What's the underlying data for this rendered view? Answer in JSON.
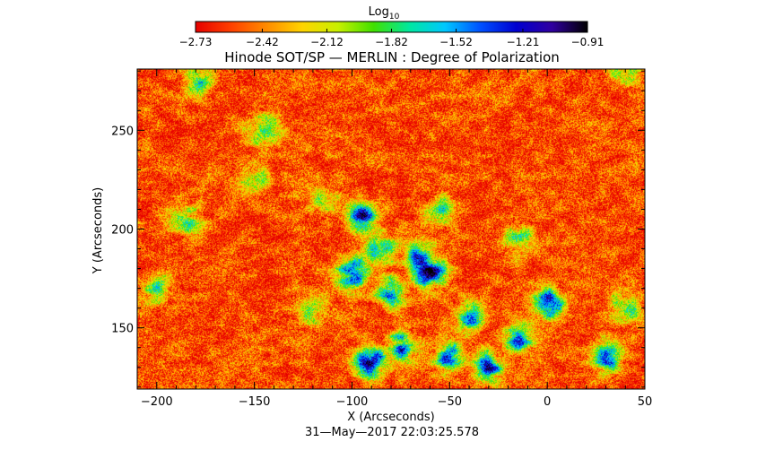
{
  "chart_data": {
    "type": "heatmap",
    "title": "Hinode SOT/SP — MERLIN : Degree of Polarization",
    "xlabel": "X (Arcseconds)",
    "ylabel": "Y (Arcseconds)",
    "date_label": "31—May—2017 22:03:25.578",
    "xlim": [
      -210,
      50
    ],
    "ylim": [
      119,
      281
    ],
    "x_ticks": [
      -200,
      -150,
      -100,
      -50,
      0,
      50
    ],
    "x_tick_labels": [
      "−200",
      "−150",
      "−100",
      "−50",
      "0",
      "50"
    ],
    "y_ticks": [
      150,
      200,
      250
    ],
    "y_tick_labels": [
      "150",
      "200",
      "250"
    ],
    "colorbar": {
      "label_main": "Log",
      "label_sub": "10",
      "range": [
        -2.73,
        -0.91
      ],
      "tick_values": [
        -2.73,
        -2.42,
        -2.12,
        -1.82,
        -1.52,
        -1.21,
        -0.91
      ],
      "tick_labels": [
        "−2.73",
        "−2.42",
        "−2.12",
        "−1.82",
        "−1.52",
        "−1.21",
        "−0.91"
      ],
      "colormap": [
        "#e60000",
        "#ff4000",
        "#ff8c00",
        "#ffd400",
        "#c8f000",
        "#40e000",
        "#00e8a0",
        "#00c8ff",
        "#0050ff",
        "#0000d0",
        "#3000a0",
        "#000000"
      ]
    },
    "background_level": -2.55,
    "polarized_regions": [
      {
        "x": -85,
        "y": 190,
        "level": -1.45
      },
      {
        "x": -95,
        "y": 205,
        "level": -1.4
      },
      {
        "x": -65,
        "y": 185,
        "level": -1.45
      },
      {
        "x": -60,
        "y": 178,
        "level": -1.05
      },
      {
        "x": -100,
        "y": 178,
        "level": -1.2
      },
      {
        "x": -80,
        "y": 168,
        "level": -1.6
      },
      {
        "x": -115,
        "y": 215,
        "level": -1.85
      },
      {
        "x": -145,
        "y": 250,
        "level": -1.75
      },
      {
        "x": -150,
        "y": 225,
        "level": -2.0
      },
      {
        "x": -185,
        "y": 205,
        "level": -1.9
      },
      {
        "x": -180,
        "y": 275,
        "level": -1.9
      },
      {
        "x": 0,
        "y": 162,
        "level": -1.3
      },
      {
        "x": -15,
        "y": 145,
        "level": -1.45
      },
      {
        "x": -30,
        "y": 130,
        "level": -1.35
      },
      {
        "x": -50,
        "y": 135,
        "level": -1.55
      },
      {
        "x": -75,
        "y": 140,
        "level": -1.45
      },
      {
        "x": -90,
        "y": 133,
        "level": -1.25
      },
      {
        "x": -40,
        "y": 155,
        "level": -1.7
      },
      {
        "x": -15,
        "y": 195,
        "level": -1.8
      },
      {
        "x": 30,
        "y": 135,
        "level": -1.55
      },
      {
        "x": 40,
        "y": 160,
        "level": -1.85
      },
      {
        "x": 40,
        "y": 280,
        "level": -1.95
      },
      {
        "x": -200,
        "y": 170,
        "level": -1.95
      },
      {
        "x": -120,
        "y": 160,
        "level": -1.95
      },
      {
        "x": -55,
        "y": 210,
        "level": -1.95
      }
    ]
  }
}
